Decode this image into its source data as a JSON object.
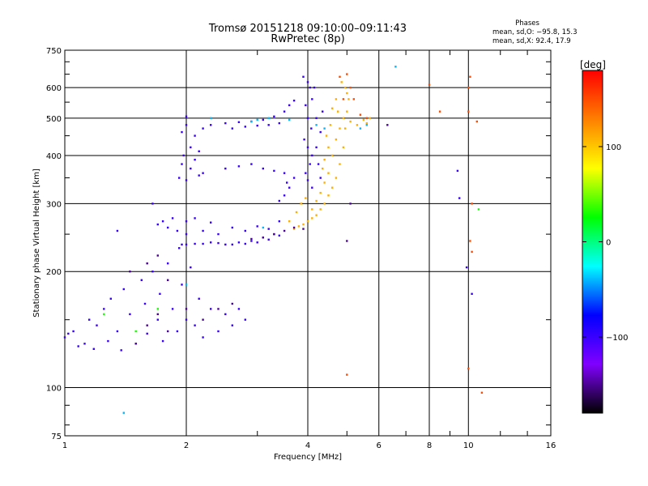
{
  "header": {
    "title_line1": "Tromsø 20151218 09:10:00–09:11:43",
    "title_line2": "RwPretec (8p)",
    "phases_title": "Phases",
    "phases_o": "mean, sd,O: −95.8, 15.3",
    "phases_x": "mean, sd,X:  92.4, 17.9"
  },
  "colorbar": {
    "unit": "[deg]",
    "range": [
      -180,
      180
    ],
    "tick_labels": [
      "100",
      "0",
      "−100"
    ],
    "tick_values": [
      100,
      0,
      -100
    ],
    "colors": [
      "#ff0000",
      "#ff8000",
      "#ffff00",
      "#00ff00",
      "#00ffff",
      "#0000ff",
      "#8000ff",
      "#000000"
    ]
  },
  "chart_data": {
    "type": "scatter",
    "title": "Tromsø 20151218 09:10:00–09:11:43",
    "subtitle": "RwPretec (8p)",
    "xlabel": "Frequency [MHz]",
    "ylabel": "Stationary phase Virtual Height [km]",
    "x_scale": "log",
    "y_scale": "log",
    "xlim": [
      1,
      16
    ],
    "ylim": [
      75,
      750
    ],
    "grid": true,
    "x_tick_values": [
      1,
      2,
      4,
      6,
      8,
      10,
      16
    ],
    "x_tick_labels": [
      "1",
      "2",
      "4",
      "6",
      "8",
      "10",
      "16"
    ],
    "y_tick_values": [
      75,
      100,
      200,
      300,
      400,
      500,
      600,
      750
    ],
    "y_tick_labels": [
      "75",
      "100",
      "200",
      "300",
      "400",
      "500",
      "600",
      "750"
    ],
    "series": [
      {
        "name": "",
        "color_value_deg": -100,
        "points": [
          [
            1.0,
            135
          ],
          [
            1.02,
            138
          ],
          [
            1.05,
            140
          ],
          [
            1.08,
            128
          ],
          [
            1.12,
            130
          ],
          [
            1.15,
            150
          ],
          [
            1.18,
            126
          ],
          [
            1.2,
            145
          ],
          [
            1.25,
            160
          ],
          [
            1.28,
            132
          ],
          [
            1.3,
            170
          ],
          [
            1.35,
            140
          ],
          [
            1.38,
            125
          ],
          [
            1.4,
            180
          ],
          [
            1.45,
            155
          ],
          [
            1.5,
            130
          ],
          [
            1.55,
            190
          ],
          [
            1.58,
            165
          ],
          [
            1.6,
            138
          ],
          [
            1.65,
            200
          ],
          [
            1.7,
            150
          ],
          [
            1.72,
            175
          ],
          [
            1.75,
            132
          ],
          [
            1.8,
            210
          ],
          [
            1.85,
            160
          ],
          [
            1.9,
            140
          ],
          [
            1.92,
            230
          ],
          [
            1.95,
            185
          ],
          [
            2.0,
            150
          ],
          [
            2.05,
            205
          ],
          [
            2.1,
            145
          ],
          [
            2.15,
            170
          ],
          [
            2.2,
            135
          ],
          [
            2.3,
            160
          ],
          [
            2.4,
            140
          ],
          [
            2.5,
            155
          ],
          [
            2.6,
            145
          ],
          [
            2.7,
            160
          ],
          [
            2.8,
            150
          ],
          [
            1.7,
            265
          ],
          [
            1.75,
            270
          ],
          [
            1.8,
            260
          ],
          [
            1.9,
            255
          ],
          [
            1.85,
            275
          ],
          [
            1.35,
            255
          ],
          [
            1.65,
            300
          ],
          [
            1.95,
            235
          ],
          [
            2.0,
            235
          ],
          [
            2.1,
            236
          ],
          [
            2.2,
            236
          ],
          [
            2.3,
            238
          ],
          [
            2.4,
            237
          ],
          [
            2.5,
            235
          ],
          [
            2.6,
            235
          ],
          [
            2.7,
            238
          ],
          [
            2.8,
            236
          ],
          [
            2.9,
            240
          ],
          [
            3.0,
            238
          ],
          [
            3.1,
            245
          ],
          [
            3.2,
            242
          ],
          [
            3.3,
            250
          ],
          [
            3.4,
            248
          ],
          [
            2.0,
            250
          ],
          [
            2.2,
            255
          ],
          [
            2.4,
            250
          ],
          [
            2.6,
            260
          ],
          [
            2.8,
            255
          ],
          [
            3.0,
            262
          ],
          [
            3.2,
            258
          ],
          [
            3.4,
            270
          ],
          [
            2.0,
            270
          ],
          [
            2.1,
            275
          ],
          [
            2.3,
            268
          ],
          [
            1.92,
            350
          ],
          [
            1.95,
            380
          ],
          [
            2.0,
            345
          ],
          [
            2.05,
            370
          ],
          [
            2.1,
            390
          ],
          [
            2.15,
            355
          ],
          [
            2.2,
            360
          ],
          [
            1.97,
            400
          ],
          [
            2.05,
            420
          ],
          [
            2.15,
            410
          ],
          [
            1.95,
            460
          ],
          [
            2.0,
            480
          ],
          [
            2.1,
            450
          ],
          [
            2.2,
            470
          ],
          [
            2.3,
            480
          ],
          [
            2.0,
            505
          ],
          [
            2.5,
            485
          ],
          [
            2.7,
            488
          ],
          [
            2.9,
            490
          ],
          [
            3.1,
            495
          ],
          [
            3.3,
            505
          ],
          [
            3.5,
            520
          ],
          [
            3.6,
            540
          ],
          [
            3.7,
            555
          ],
          [
            2.6,
            470
          ],
          [
            2.8,
            475
          ],
          [
            3.0,
            478
          ],
          [
            3.2,
            480
          ],
          [
            3.4,
            485
          ],
          [
            2.5,
            370
          ],
          [
            2.7,
            375
          ],
          [
            2.9,
            380
          ],
          [
            3.1,
            370
          ],
          [
            3.3,
            365
          ],
          [
            3.5,
            360
          ],
          [
            3.4,
            305
          ],
          [
            3.5,
            315
          ],
          [
            3.6,
            330
          ],
          [
            3.7,
            350
          ],
          [
            3.55,
            340
          ],
          [
            3.9,
            640
          ],
          [
            4.0,
            620
          ],
          [
            4.05,
            600
          ],
          [
            4.1,
            560
          ],
          [
            3.95,
            540
          ],
          [
            4.0,
            500
          ],
          [
            4.08,
            470
          ],
          [
            3.92,
            440
          ],
          [
            4.0,
            420
          ],
          [
            4.1,
            400
          ],
          [
            4.05,
            380
          ],
          [
            3.95,
            360
          ],
          [
            4.0,
            345
          ],
          [
            4.1,
            330
          ],
          [
            4.2,
            420
          ],
          [
            4.25,
            380
          ],
          [
            4.3,
            350
          ],
          [
            4.2,
            500
          ],
          [
            4.15,
            600
          ],
          [
            4.3,
            460
          ],
          [
            4.35,
            520
          ],
          [
            9.4,
            365
          ],
          [
            9.5,
            310
          ],
          [
            9.9,
            205
          ],
          [
            10.2,
            175
          ]
        ]
      },
      {
        "name": "",
        "color_value_deg": 110,
        "points": [
          [
            3.7,
            258
          ],
          [
            3.8,
            262
          ],
          [
            3.9,
            265
          ],
          [
            4.0,
            270
          ],
          [
            4.1,
            275
          ],
          [
            4.2,
            280
          ],
          [
            4.3,
            290
          ],
          [
            4.4,
            300
          ],
          [
            4.5,
            315
          ],
          [
            4.6,
            330
          ],
          [
            4.7,
            350
          ],
          [
            4.8,
            380
          ],
          [
            4.9,
            420
          ],
          [
            4.95,
            470
          ],
          [
            5.0,
            520
          ],
          [
            5.0,
            580
          ],
          [
            4.6,
            400
          ],
          [
            4.7,
            440
          ],
          [
            4.8,
            470
          ],
          [
            4.5,
            360
          ],
          [
            4.4,
            340
          ],
          [
            4.3,
            320
          ],
          [
            4.2,
            305
          ],
          [
            4.1,
            290
          ],
          [
            4.9,
            500
          ],
          [
            5.1,
            490
          ],
          [
            5.3,
            480
          ],
          [
            5.5,
            495
          ],
          [
            5.7,
            500
          ],
          [
            5.6,
            485
          ],
          [
            4.85,
            620
          ],
          [
            4.95,
            600
          ],
          [
            5.05,
            560
          ],
          [
            4.7,
            560
          ],
          [
            4.6,
            530
          ],
          [
            4.75,
            520
          ],
          [
            4.5,
            420
          ],
          [
            4.4,
            390
          ],
          [
            4.35,
            370
          ],
          [
            4.45,
            450
          ],
          [
            4.55,
            480
          ],
          [
            3.6,
            270
          ],
          [
            3.75,
            285
          ],
          [
            3.85,
            300
          ],
          [
            3.95,
            310
          ]
        ]
      },
      {
        "name": "",
        "color_value_deg": 150,
        "points": [
          [
            4.8,
            640
          ],
          [
            5.0,
            650
          ],
          [
            5.2,
            560
          ],
          [
            5.4,
            510
          ],
          [
            5.6,
            500
          ],
          [
            4.9,
            560
          ],
          [
            5.1,
            600
          ],
          [
            10.0,
            600
          ],
          [
            10.1,
            640
          ],
          [
            10.0,
            520
          ],
          [
            10.2,
            300
          ],
          [
            10.5,
            490
          ],
          [
            8.0,
            610
          ],
          [
            8.5,
            520
          ],
          [
            10.1,
            240
          ],
          [
            10.2,
            225
          ],
          [
            10.0,
            112
          ],
          [
            10.8,
            97
          ],
          [
            5.0,
            108
          ]
        ]
      },
      {
        "name": "",
        "color_value_deg": -150,
        "points": [
          [
            1.5,
            130
          ],
          [
            1.6,
            145
          ],
          [
            1.7,
            155
          ],
          [
            1.8,
            140
          ],
          [
            2.0,
            160
          ],
          [
            2.2,
            150
          ],
          [
            2.4,
            160
          ],
          [
            2.6,
            165
          ],
          [
            2.9,
            243
          ],
          [
            3.1,
            245
          ],
          [
            3.3,
            250
          ],
          [
            3.5,
            255
          ],
          [
            3.7,
            260
          ],
          [
            3.9,
            258
          ],
          [
            1.6,
            210
          ],
          [
            1.7,
            220
          ],
          [
            1.8,
            190
          ],
          [
            1.45,
            200
          ],
          [
            5.0,
            240
          ],
          [
            5.1,
            300
          ],
          [
            6.3,
            480
          ]
        ]
      },
      {
        "name": "",
        "color_value_deg": -40,
        "points": [
          [
            2.9,
            490
          ],
          [
            3.0,
            495
          ],
          [
            3.2,
            500
          ],
          [
            3.6,
            495
          ],
          [
            2.3,
            500
          ],
          [
            4.2,
            480
          ],
          [
            4.4,
            470
          ],
          [
            5.4,
            470
          ],
          [
            5.6,
            480
          ],
          [
            1.4,
            86
          ],
          [
            2.0,
            185
          ],
          [
            6.6,
            680
          ],
          [
            3.1,
            260
          ]
        ]
      },
      {
        "name": "",
        "color_value_deg": 30,
        "points": [
          [
            1.25,
            155
          ],
          [
            1.5,
            140
          ],
          [
            1.7,
            160
          ],
          [
            10.6,
            290
          ]
        ]
      }
    ]
  }
}
